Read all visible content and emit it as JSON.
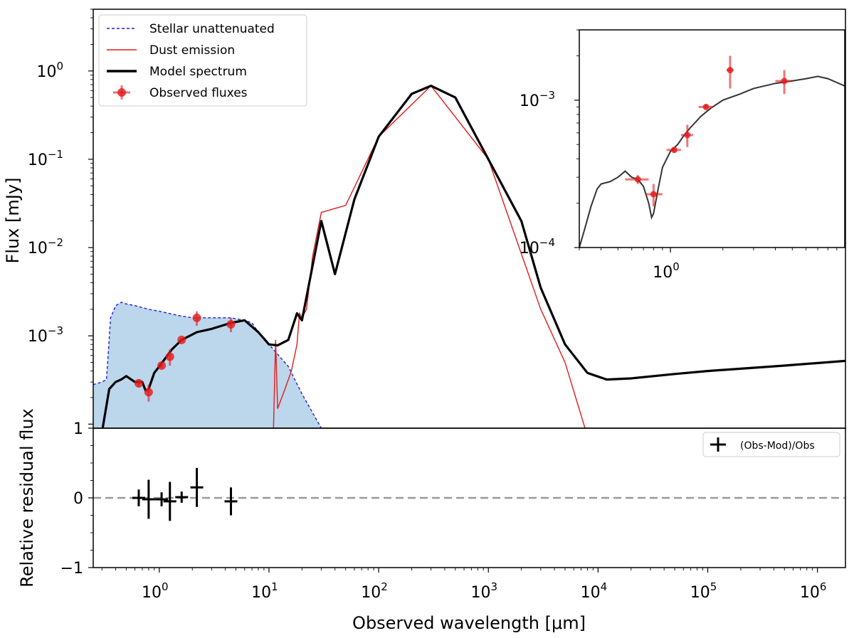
{
  "chart_data": [
    {
      "type": "line",
      "panel": "SED fit (main)",
      "xlabel": "",
      "ylabel": "Flux [mJy]",
      "xscale": "log",
      "yscale": "log",
      "xlim": [
        0.25,
        1800000
      ],
      "ylim": [
        9e-05,
        5
      ],
      "y_ticks": [
        "10",
        "10",
        "10",
        "10"
      ],
      "y_tick_exponents": [
        "0",
        "−1",
        "−2",
        "−3"
      ],
      "y_tick_values": [
        1,
        0.1,
        0.01,
        0.001
      ],
      "legend": {
        "placement": "top-left",
        "entries": [
          {
            "label": "Stellar unattenuated",
            "style": "dashed",
            "color": "#1f1fd8"
          },
          {
            "label": "Dust emission",
            "style": "solid",
            "color": "#e31a1c"
          },
          {
            "label": "Model spectrum",
            "style": "solid-thick",
            "color": "#000000"
          },
          {
            "label": "Observed fluxes",
            "style": "marker",
            "color": "#e31a1c"
          }
        ]
      },
      "observed_fluxes": [
        {
          "x": 0.65,
          "y": 0.00029,
          "yerr": 3e-05
        },
        {
          "x": 0.8,
          "y": 0.00023,
          "yerr": 5e-05
        },
        {
          "x": 1.05,
          "y": 0.00046,
          "yerr": 3e-05
        },
        {
          "x": 1.25,
          "y": 0.00058,
          "yerr": 0.00012
        },
        {
          "x": 1.6,
          "y": 0.0009,
          "yerr": 5e-05
        },
        {
          "x": 2.2,
          "y": 0.0016,
          "yerr": 0.0003
        },
        {
          "x": 4.5,
          "y": 0.00135,
          "yerr": 0.00025
        }
      ],
      "model_spectrum": {
        "x": [
          0.3,
          0.35,
          0.4,
          0.45,
          0.5,
          0.6,
          0.7,
          0.75,
          0.8,
          0.9,
          1.0,
          1.3,
          1.6,
          2.2,
          3,
          4.5,
          6,
          8,
          10,
          12,
          15,
          18,
          20,
          30,
          40,
          60,
          100,
          200,
          300,
          500,
          1000,
          2000,
          3000,
          5000,
          8000,
          12000,
          20000,
          50000,
          100000,
          500000,
          1800000
        ],
        "y": [
          8e-05,
          0.00025,
          0.0003,
          0.00032,
          0.00035,
          0.0003,
          0.0003,
          0.00024,
          0.00025,
          0.00038,
          0.00045,
          0.0007,
          0.0009,
          0.0011,
          0.0012,
          0.0014,
          0.0015,
          0.0011,
          0.0008,
          0.00078,
          0.0009,
          0.0018,
          0.0015,
          0.02,
          0.005,
          0.035,
          0.18,
          0.55,
          0.68,
          0.5,
          0.1,
          0.02,
          0.0035,
          0.0008,
          0.00038,
          0.00032,
          0.00033,
          0.00037,
          0.0004,
          0.00046,
          0.00052
        ]
      },
      "stellar_unattenuated": {
        "x": [
          0.25,
          0.3,
          0.33,
          0.36,
          0.4,
          0.45,
          0.5,
          0.6,
          0.8,
          1.0,
          1.5,
          2.0,
          3.0,
          4.5,
          6.0,
          7.0,
          8.0,
          10,
          15,
          20,
          30
        ],
        "y": [
          0.00028,
          0.0003,
          0.00032,
          0.0016,
          0.0022,
          0.0024,
          0.0023,
          0.0022,
          0.002,
          0.0019,
          0.0017,
          0.0016,
          0.0016,
          0.0016,
          0.0015,
          0.0014,
          0.0011,
          0.0008,
          0.00045,
          0.00022,
          9e-05
        ]
      },
      "dust_emission": {
        "x": [
          11,
          11.5,
          12,
          14,
          16,
          18,
          19,
          20,
          22,
          25,
          30,
          50,
          100,
          300,
          1000,
          3000,
          5000,
          7600
        ],
        "y": [
          9e-05,
          0.0009,
          0.00015,
          0.00025,
          0.0004,
          0.0008,
          0.0018,
          0.0016,
          0.002,
          0.008,
          0.025,
          0.03,
          0.18,
          0.68,
          0.1,
          0.002,
          0.0005,
          9e-05
        ]
      }
    },
    {
      "type": "scatter",
      "panel": "Residuals",
      "xlabel": "Observed wavelength [μm]",
      "ylabel": "Relative residual flux",
      "xscale": "log",
      "ylim": [
        -1,
        1
      ],
      "y_ticks": [
        "1",
        "0",
        "−1"
      ],
      "x_ticks": [
        "10",
        "10",
        "10",
        "10",
        "10",
        "10",
        "10"
      ],
      "x_tick_exponents": [
        "0",
        "1",
        "2",
        "3",
        "4",
        "5",
        "6"
      ],
      "reference_line": {
        "y": 0,
        "style": "dashed",
        "color": "#999999"
      },
      "legend": {
        "placement": "top-right",
        "entries": [
          {
            "label": "(Obs-Mod)/Obs"
          }
        ]
      },
      "points": [
        {
          "x": 0.65,
          "y": 0.0,
          "yerr": 0.12
        },
        {
          "x": 0.8,
          "y": -0.02,
          "yerr": 0.28
        },
        {
          "x": 1.05,
          "y": -0.02,
          "yerr": 0.1
        },
        {
          "x": 1.25,
          "y": -0.05,
          "yerr": 0.28
        },
        {
          "x": 1.6,
          "y": 0.01,
          "yerr": 0.08
        },
        {
          "x": 2.2,
          "y": 0.15,
          "yerr": 0.28
        },
        {
          "x": 4.5,
          "y": -0.05,
          "yerr": 0.2
        }
      ]
    },
    {
      "type": "line",
      "panel": "Inset zoom",
      "xscale": "log",
      "yscale": "log",
      "xlim": [
        0.3,
        10
      ],
      "ylim": [
        0.0001,
        0.003
      ],
      "x_ticks": [
        "10"
      ],
      "x_tick_exponents": [
        "0"
      ],
      "y_ticks": [
        "10",
        "10"
      ],
      "y_tick_exponents": [
        "−3",
        "−4"
      ],
      "observed_fluxes": [
        {
          "x": 0.65,
          "y": 0.00029,
          "xerr": [
            0.55,
            0.75
          ],
          "yerr": 2e-05
        },
        {
          "x": 0.8,
          "y": 0.00023,
          "xerr": [
            0.72,
            0.9
          ],
          "yerr": 4e-05
        },
        {
          "x": 1.05,
          "y": 0.00046,
          "xerr": [
            0.95,
            1.15
          ],
          "yerr": 2e-05
        },
        {
          "x": 1.25,
          "y": 0.00058,
          "xerr": [
            1.15,
            1.35
          ],
          "yerr": 0.0001
        },
        {
          "x": 1.6,
          "y": 0.0009,
          "xerr": [
            1.45,
            1.75
          ],
          "yerr": 4e-05
        },
        {
          "x": 2.2,
          "y": 0.0016,
          "xerr": [
            2.1,
            2.3
          ],
          "yerr": 0.0004
        },
        {
          "x": 4.5,
          "y": 0.00135,
          "xerr": [
            4.0,
            5.0
          ],
          "yerr": 0.00025
        }
      ],
      "model_spectrum": {
        "x": [
          0.3,
          0.32,
          0.35,
          0.38,
          0.4,
          0.45,
          0.5,
          0.55,
          0.6,
          0.65,
          0.7,
          0.75,
          0.78,
          0.8,
          0.85,
          0.9,
          1.0,
          1.1,
          1.2,
          1.3,
          1.5,
          1.7,
          2.0,
          2.5,
          3.0,
          4.0,
          5.0,
          6.0,
          7.0,
          8.0,
          10.0
        ],
        "y": [
          0.0001,
          0.00013,
          0.00019,
          0.00025,
          0.00027,
          0.00028,
          0.0003,
          0.00033,
          0.0003,
          0.00029,
          0.00026,
          0.0002,
          0.00016,
          0.00017,
          0.00025,
          0.00035,
          0.00045,
          0.0005,
          0.00058,
          0.00065,
          0.00078,
          0.00088,
          0.001,
          0.0011,
          0.0012,
          0.0013,
          0.00135,
          0.0014,
          0.00145,
          0.0014,
          0.00125
        ]
      }
    }
  ]
}
